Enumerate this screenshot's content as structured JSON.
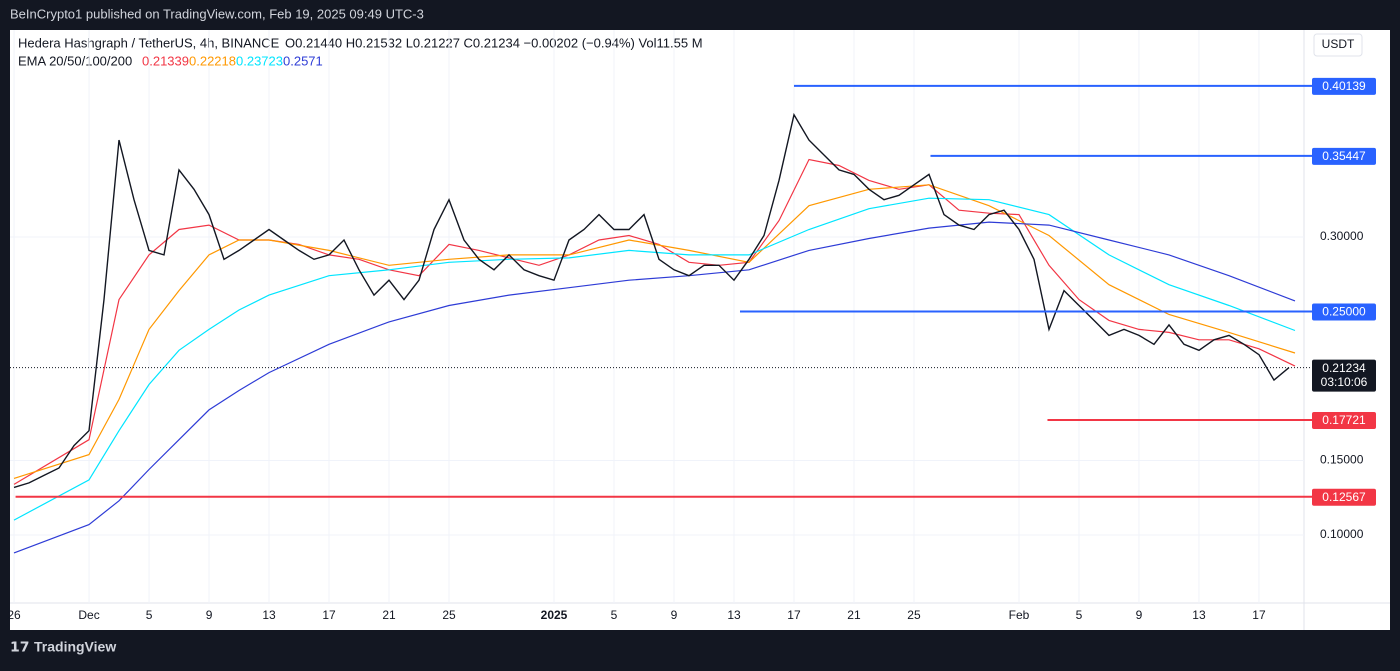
{
  "header": {
    "publisher": "BeInCrypto1 published on TradingView.com, Feb 19, 2025 09:49 UTC-3",
    "brand": "TradingView"
  },
  "chart_data": {
    "type": "candlestick-line",
    "symbol": "Hedera Hashgraph / TetherUS, 4h, BINANCE",
    "ohlc": "O0.21440 H0.21532 L0.21227 C0.21234 −0.00202 (−0.94%) Vol11.55 M",
    "ema_label": "EMA 20/50/100/200",
    "currency": "USDT",
    "ylim": [
      0.0544,
      0.4389
    ],
    "yticks": [
      {
        "value": 0.1,
        "label": "0.10000"
      },
      {
        "value": 0.15,
        "label": "0.15000"
      },
      {
        "value": 0.3,
        "label": "0.30000"
      }
    ],
    "xlim": [
      -0.27,
      85.87
    ],
    "xticks": [
      {
        "value": 0,
        "label": "26"
      },
      {
        "value": 5,
        "label": "Dec"
      },
      {
        "value": 9,
        "label": "5"
      },
      {
        "value": 13,
        "label": "9"
      },
      {
        "value": 17,
        "label": "13"
      },
      {
        "value": 21,
        "label": "17"
      },
      {
        "value": 25,
        "label": "21"
      },
      {
        "value": 29,
        "label": "25"
      },
      {
        "value": 36,
        "label": "2025"
      },
      {
        "value": 40,
        "label": "5"
      },
      {
        "value": 44,
        "label": "9"
      },
      {
        "value": 48,
        "label": "13"
      },
      {
        "value": 52,
        "label": "17"
      },
      {
        "value": 56,
        "label": "21"
      },
      {
        "value": 60,
        "label": "25"
      },
      {
        "value": 67,
        "label": "Feb"
      },
      {
        "value": 71,
        "label": "5"
      },
      {
        "value": 75,
        "label": "9"
      },
      {
        "value": 79,
        "label": "13"
      },
      {
        "value": 83,
        "label": "17"
      }
    ],
    "grid": true,
    "price": {
      "color": "#131722",
      "x": [
        0,
        1,
        2,
        3,
        4,
        5,
        6,
        7,
        8,
        9,
        10,
        11,
        12,
        13,
        14,
        15,
        16,
        17,
        18,
        19,
        20,
        21,
        22,
        23,
        24,
        25,
        26,
        27,
        28,
        29,
        30,
        31,
        32,
        33,
        34,
        35,
        36,
        37,
        38,
        39,
        40,
        41,
        42,
        43,
        44,
        45,
        46,
        47,
        48,
        49,
        50,
        51,
        52,
        53,
        54,
        55,
        56,
        57,
        58,
        59,
        60,
        61,
        62,
        63,
        64,
        65,
        66,
        67,
        68,
        69,
        70,
        71,
        72,
        73,
        74,
        75,
        76,
        77,
        78,
        79,
        80,
        81,
        82,
        83,
        84,
        85
      ],
      "values": [
        0.132,
        0.135,
        0.14,
        0.145,
        0.16,
        0.17,
        0.258,
        0.365,
        0.325,
        0.291,
        0.288,
        0.345,
        0.332,
        0.315,
        0.285,
        0.291,
        0.298,
        0.305,
        0.298,
        0.291,
        0.285,
        0.288,
        0.298,
        0.278,
        0.261,
        0.271,
        0.258,
        0.271,
        0.305,
        0.325,
        0.298,
        0.285,
        0.278,
        0.288,
        0.278,
        0.274,
        0.271,
        0.298,
        0.305,
        0.315,
        0.305,
        0.305,
        0.315,
        0.285,
        0.278,
        0.274,
        0.281,
        0.281,
        0.271,
        0.285,
        0.301,
        0.338,
        0.382,
        0.365,
        0.355,
        0.345,
        0.342,
        0.332,
        0.325,
        0.328,
        0.335,
        0.342,
        0.315,
        0.308,
        0.305,
        0.315,
        0.318,
        0.305,
        0.285,
        0.238,
        0.264,
        0.254,
        0.244,
        0.234,
        0.238,
        0.234,
        0.228,
        0.241,
        0.228,
        0.224,
        0.231,
        0.234,
        0.228,
        0.221,
        0.204,
        0.21234
      ]
    },
    "series": [
      {
        "color": "#f23645",
        "x": [
          0,
          5,
          7,
          9,
          11,
          13,
          15,
          17,
          19,
          21,
          23,
          25,
          27,
          29,
          31,
          33,
          35,
          37,
          39,
          41,
          43,
          45,
          47,
          49,
          51,
          53,
          55,
          57,
          59,
          61,
          63,
          65,
          67,
          69,
          71,
          73,
          75,
          77,
          79,
          81,
          83,
          85.4
        ],
        "values": [
          0.134,
          0.164,
          0.258,
          0.288,
          0.305,
          0.308,
          0.298,
          0.298,
          0.295,
          0.288,
          0.285,
          0.278,
          0.274,
          0.295,
          0.291,
          0.286,
          0.281,
          0.288,
          0.298,
          0.301,
          0.295,
          0.283,
          0.281,
          0.283,
          0.311,
          0.352,
          0.348,
          0.338,
          0.332,
          0.335,
          0.318,
          0.316,
          0.315,
          0.281,
          0.258,
          0.244,
          0.238,
          0.236,
          0.231,
          0.231,
          0.225,
          0.21339
        ]
      },
      {
        "color": "#ff9800",
        "x": [
          0,
          5,
          7,
          9,
          11,
          13,
          15,
          17,
          21,
          25,
          29,
          33,
          37,
          41,
          45,
          49,
          53,
          57,
          61,
          65,
          69,
          73,
          77,
          81,
          85.4
        ],
        "values": [
          0.138,
          0.154,
          0.191,
          0.238,
          0.264,
          0.288,
          0.298,
          0.298,
          0.291,
          0.281,
          0.285,
          0.288,
          0.288,
          0.298,
          0.291,
          0.283,
          0.321,
          0.332,
          0.335,
          0.321,
          0.301,
          0.268,
          0.248,
          0.236,
          0.22218
        ]
      },
      {
        "color": "#00e5ff",
        "x": [
          0,
          5,
          7,
          9,
          11,
          13,
          15,
          17,
          21,
          25,
          29,
          33,
          37,
          41,
          45,
          49,
          53,
          57,
          61,
          65,
          69,
          73,
          77,
          81,
          85.4
        ],
        "values": [
          0.11,
          0.137,
          0.17,
          0.201,
          0.224,
          0.238,
          0.251,
          0.261,
          0.274,
          0.278,
          0.283,
          0.285,
          0.286,
          0.291,
          0.288,
          0.288,
          0.305,
          0.319,
          0.326,
          0.325,
          0.315,
          0.288,
          0.268,
          0.254,
          0.23723
        ]
      },
      {
        "color": "#2e3cd6",
        "x": [
          0,
          5,
          7,
          9,
          11,
          13,
          15,
          17,
          21,
          25,
          29,
          33,
          37,
          41,
          45,
          49,
          53,
          57,
          61,
          65,
          69,
          73,
          77,
          81,
          85.4
        ],
        "values": [
          0.088,
          0.107,
          0.123,
          0.144,
          0.164,
          0.184,
          0.197,
          0.209,
          0.228,
          0.243,
          0.254,
          0.261,
          0.266,
          0.271,
          0.274,
          0.278,
          0.291,
          0.299,
          0.306,
          0.31,
          0.308,
          0.298,
          0.288,
          0.274,
          0.2571
        ]
      }
    ],
    "levels": [
      {
        "value": 0.40139,
        "from": 52,
        "color": "#2962ff"
      },
      {
        "value": 0.35447,
        "from": 61.1,
        "color": "#2962ff"
      },
      {
        "value": 0.25,
        "label": "0.25000",
        "from": 48.4,
        "color": "#2962ff"
      },
      {
        "value": 0.17721,
        "from": 68.9,
        "color": "#f23645"
      },
      {
        "value": 0.12567,
        "from": 0.1,
        "color": "#f23645"
      }
    ],
    "countdown": "03:10:06"
  }
}
